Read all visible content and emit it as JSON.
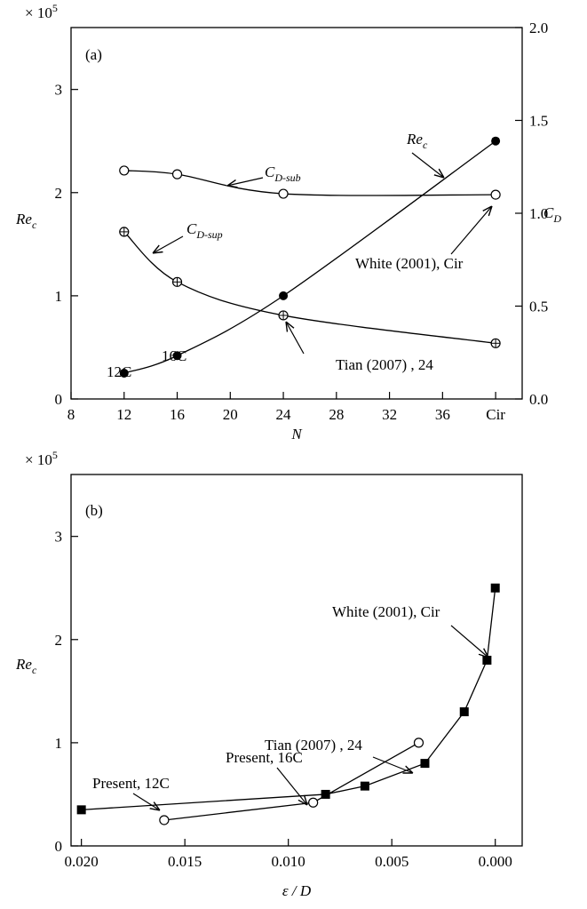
{
  "chart_data": [
    {
      "type": "line",
      "panel_label": "(a)",
      "multiplier": {
        "text": "× 10",
        "sup": "5"
      },
      "xlabel": "N",
      "ylabel": {
        "text": "Re",
        "sub": "c"
      },
      "y2label": {
        "text": "C",
        "sub": "D"
      },
      "x": [
        12,
        16,
        24,
        40
      ],
      "xlim": [
        8,
        42
      ],
      "xticks": [
        8,
        12,
        16,
        20,
        24,
        28,
        32,
        36,
        {
          "value": 40,
          "label": "Cir"
        }
      ],
      "ylim": [
        0,
        3.6
      ],
      "yticks": [
        0,
        1,
        2,
        3
      ],
      "y2lim": [
        0,
        2.0
      ],
      "y2ticks": [
        {
          "value": 0,
          "label": "0.0"
        },
        {
          "value": 0.5,
          "label": "0.5"
        },
        {
          "value": 1,
          "label": "1.0"
        },
        {
          "value": 1.5,
          "label": "1.5"
        },
        {
          "value": 2,
          "label": "2.0"
        }
      ],
      "smooth": true,
      "series": [
        {
          "color": "#000000",
          "marker": "filled-circle",
          "values": [
            0.25,
            0.42,
            1.0,
            2.5
          ]
        },
        {
          "color": "#000000",
          "marker": "open-circle",
          "axis": "y2",
          "values": [
            1.23,
            1.21,
            1.105,
            1.1
          ]
        },
        {
          "color": "#000000",
          "marker": "crossed-circle",
          "axis": "y2",
          "values": [
            0.9,
            0.63,
            0.45,
            0.3
          ]
        }
      ],
      "annotations": [
        {
          "text": "12C"
        },
        {
          "text": "16C"
        },
        {
          "text": "Re",
          "sub": "c"
        },
        {
          "text": "C",
          "sub": "D-sub"
        },
        {
          "text": "C",
          "sub": "D-sup"
        },
        {
          "text": "White (2001), Cir"
        },
        {
          "text": "Tian (2007) , 24"
        }
      ]
    },
    {
      "type": "line",
      "panel_label": "(b)",
      "multiplier": {
        "text": "× 10",
        "sup": "5"
      },
      "xlabel": "ε / D",
      "ylabel": {
        "text": "Re",
        "sub": "c"
      },
      "xlim": [
        0.0205,
        -0.0013
      ],
      "xticks": [
        {
          "value": 0.02,
          "label": "0.020"
        },
        {
          "value": 0.015,
          "label": "0.015"
        },
        {
          "value": 0.01,
          "label": "0.010"
        },
        {
          "value": 0.005,
          "label": "0.005"
        },
        {
          "value": 0,
          "label": "0.000"
        }
      ],
      "ylim": [
        0,
        3.6
      ],
      "yticks": [
        0,
        1,
        2,
        3
      ],
      "smooth": false,
      "series": [
        {
          "color": "#000000",
          "marker": "filled-square",
          "x": [
            0.02,
            0.0082,
            0.0063,
            0.0034,
            0.0015,
            0.0004,
            0.0
          ],
          "values": [
            0.35,
            0.5,
            0.58,
            0.8,
            1.3,
            1.8,
            2.5
          ]
        },
        {
          "color": "#000000",
          "marker": "open-circle",
          "x": [
            0.016,
            0.0088,
            0.0037
          ],
          "values": [
            0.25,
            0.42,
            1.0
          ]
        }
      ],
      "annotations": [
        {
          "text": "Present, 12C"
        },
        {
          "text": "Present, 16C"
        },
        {
          "text": "Tian (2007) , 24"
        },
        {
          "text": "White (2001), Cir"
        }
      ]
    }
  ]
}
